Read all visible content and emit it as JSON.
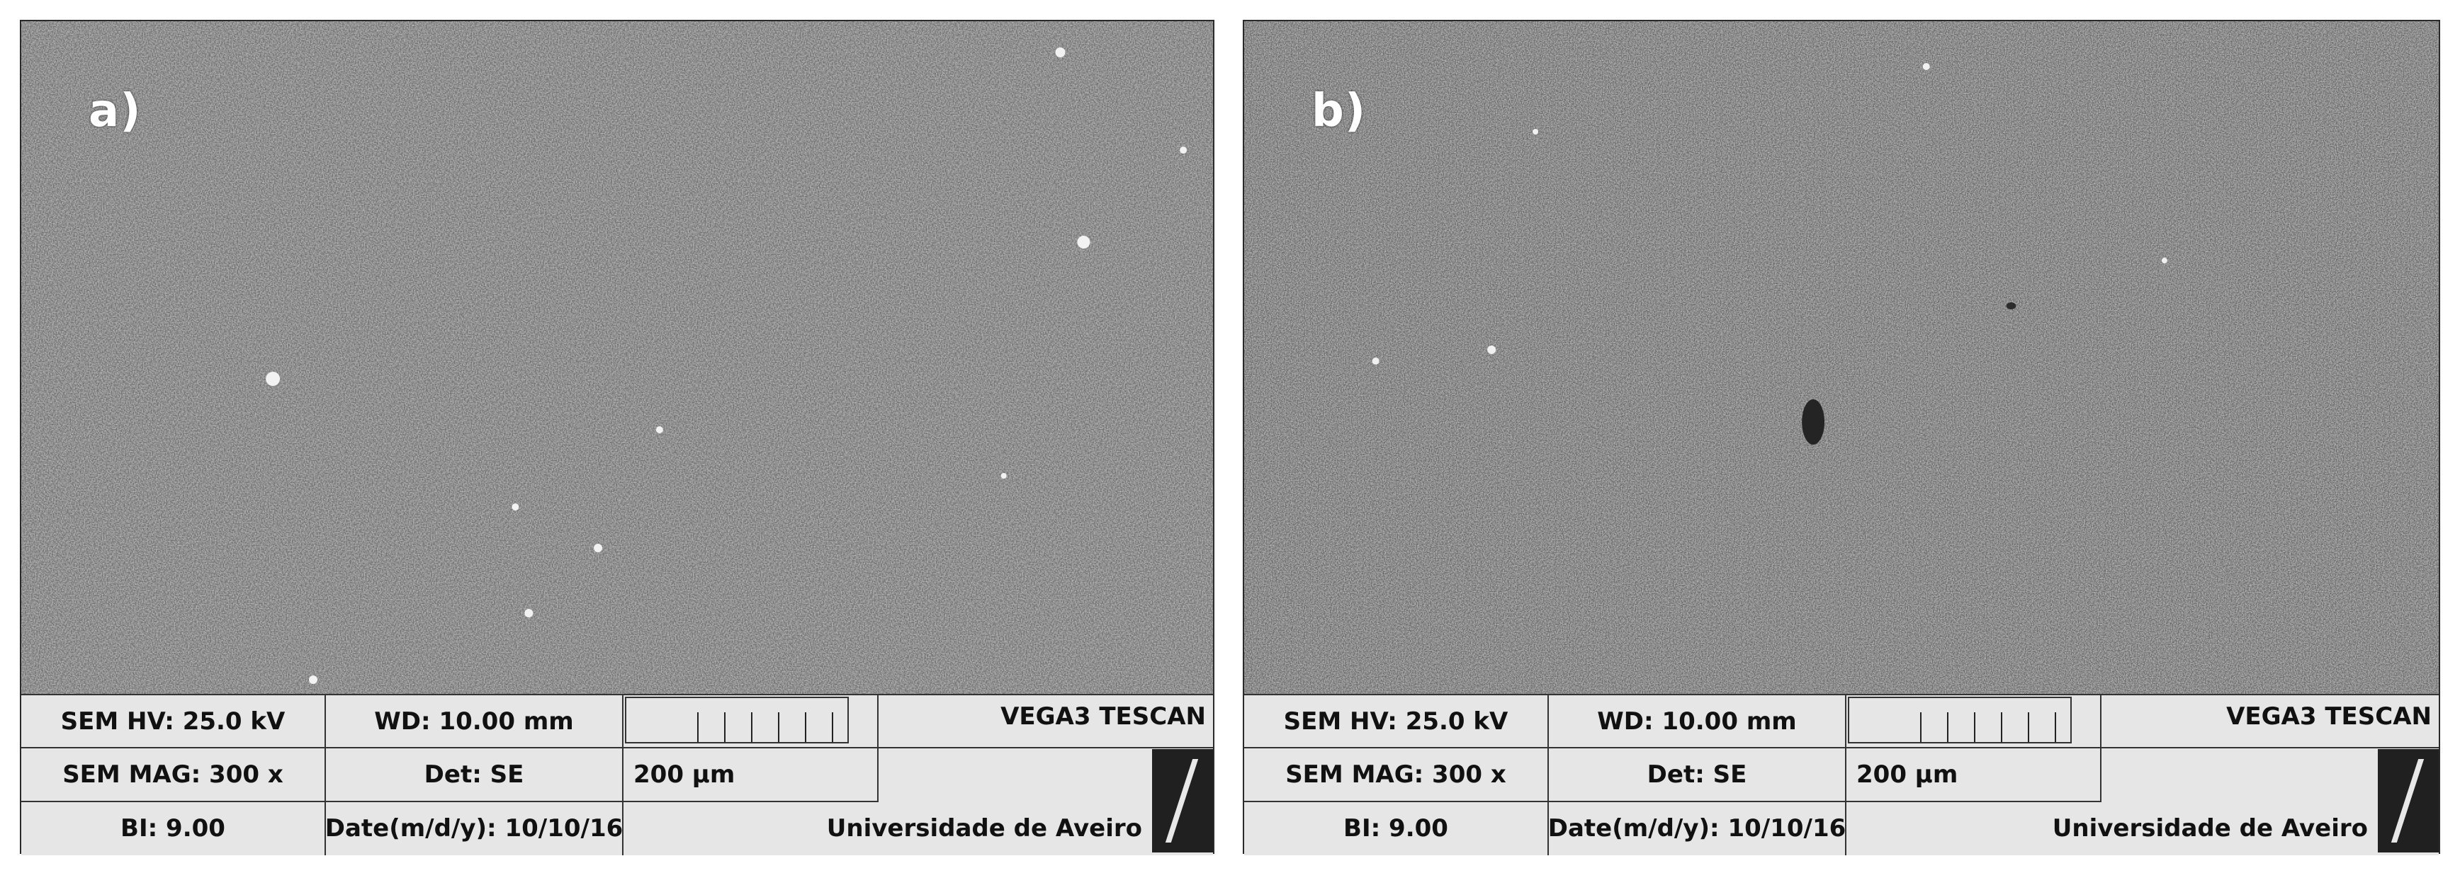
{
  "panels": [
    {
      "label": "a)",
      "hv": "SEM HV: 25.0 kV",
      "wd": "WD: 10.00 mm",
      "mag": "SEM MAG: 300 x",
      "det": "Det: SE",
      "scale": "200 μm",
      "bi": "BI: 9.00",
      "date": "Date(m/d/y): 10/10/16",
      "brand": "VEGA3 TESCAN",
      "institution": "Universidade de Aveiro",
      "logo_icon": "tescan-logo-icon"
    },
    {
      "label": "b)",
      "hv": "SEM HV: 25.0 kV",
      "wd": "WD: 10.00 mm",
      "mag": "SEM MAG: 300 x",
      "det": "Det: SE",
      "scale": "200 μm",
      "bi": "BI: 9.00",
      "date": "Date(m/d/y): 10/10/16",
      "brand": "VEGA3 TESCAN",
      "institution": "Universidade de Aveiro",
      "logo_icon": "tescan-logo-icon"
    }
  ],
  "colors": {
    "micrograph_base": "#6e6e6e",
    "databar_bg": "#e6e6e6"
  }
}
